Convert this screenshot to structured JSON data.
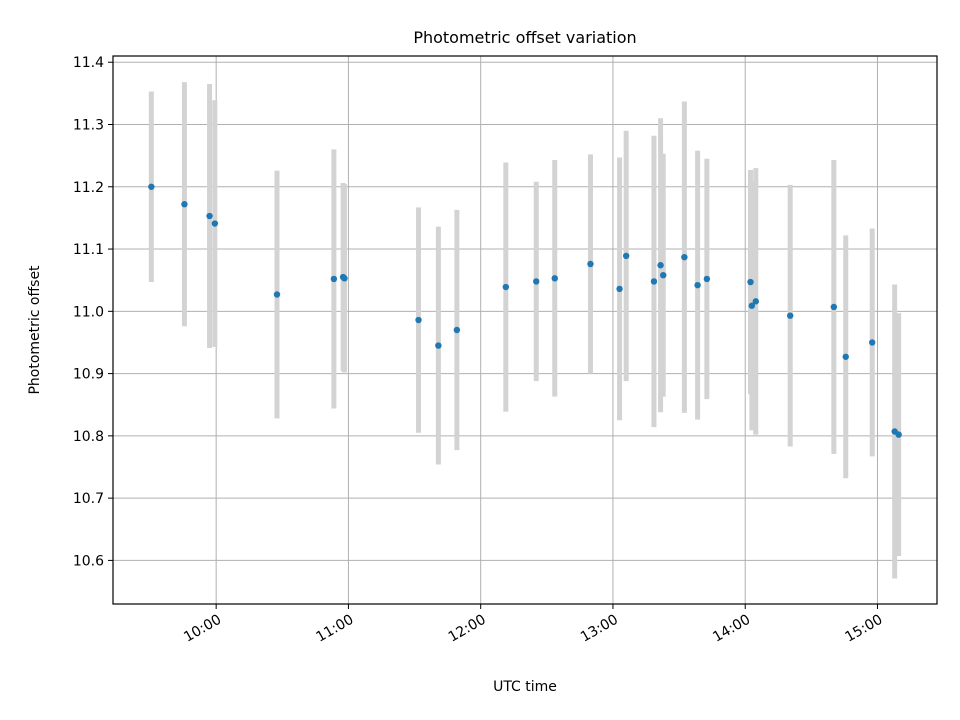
{
  "chart_data": {
    "type": "scatter",
    "title": "Photometric offset variation",
    "xlabel": "UTC time",
    "ylabel": "Photometric offset",
    "x_unit": "hours UTC (decimal)",
    "xlim": [
      9.22,
      15.45
    ],
    "ylim": [
      10.53,
      11.41
    ],
    "x_ticks": [
      {
        "value": 10,
        "label": "10:00"
      },
      {
        "value": 11,
        "label": "11:00"
      },
      {
        "value": 12,
        "label": "12:00"
      },
      {
        "value": 13,
        "label": "13:00"
      },
      {
        "value": 14,
        "label": "14:00"
      },
      {
        "value": 15,
        "label": "15:00"
      }
    ],
    "y_ticks": [
      {
        "value": 10.6,
        "label": "10.6"
      },
      {
        "value": 10.7,
        "label": "10.7"
      },
      {
        "value": 10.8,
        "label": "10.8"
      },
      {
        "value": 10.9,
        "label": "10.9"
      },
      {
        "value": 11.0,
        "label": "11.0"
      },
      {
        "value": 11.1,
        "label": "11.1"
      },
      {
        "value": 11.2,
        "label": "11.2"
      },
      {
        "value": 11.3,
        "label": "11.3"
      },
      {
        "value": 11.4,
        "label": "11.4"
      }
    ],
    "grid": true,
    "point_color": "#1f77b4",
    "errorbar_color": "#d3d3d3",
    "points": [
      {
        "x": 9.51,
        "y": 11.2,
        "err": 0.153
      },
      {
        "x": 9.76,
        "y": 11.172,
        "err": 0.196
      },
      {
        "x": 9.95,
        "y": 11.153,
        "err": 0.212
      },
      {
        "x": 9.99,
        "y": 11.141,
        "err": 0.198
      },
      {
        "x": 10.46,
        "y": 11.027,
        "err": 0.199
      },
      {
        "x": 10.89,
        "y": 11.052,
        "err": 0.208
      },
      {
        "x": 10.96,
        "y": 11.055,
        "err": 0.151
      },
      {
        "x": 10.97,
        "y": 11.053,
        "err": 0.151
      },
      {
        "x": 11.53,
        "y": 10.986,
        "err": 0.181
      },
      {
        "x": 11.68,
        "y": 10.945,
        "err": 0.191
      },
      {
        "x": 11.82,
        "y": 10.97,
        "err": 0.193
      },
      {
        "x": 12.19,
        "y": 11.039,
        "err": 0.2
      },
      {
        "x": 12.42,
        "y": 11.048,
        "err": 0.16
      },
      {
        "x": 12.56,
        "y": 11.053,
        "err": 0.19
      },
      {
        "x": 12.83,
        "y": 11.076,
        "err": 0.176
      },
      {
        "x": 13.05,
        "y": 11.036,
        "err": 0.211
      },
      {
        "x": 13.1,
        "y": 11.089,
        "err": 0.201
      },
      {
        "x": 13.31,
        "y": 11.048,
        "err": 0.234
      },
      {
        "x": 13.36,
        "y": 11.074,
        "err": 0.236
      },
      {
        "x": 13.38,
        "y": 11.058,
        "err": 0.195
      },
      {
        "x": 13.54,
        "y": 11.087,
        "err": 0.25
      },
      {
        "x": 13.64,
        "y": 11.042,
        "err": 0.216
      },
      {
        "x": 13.71,
        "y": 11.052,
        "err": 0.193
      },
      {
        "x": 14.04,
        "y": 11.047,
        "err": 0.18
      },
      {
        "x": 14.05,
        "y": 11.009,
        "err": 0.2
      },
      {
        "x": 14.08,
        "y": 11.016,
        "err": 0.214
      },
      {
        "x": 14.34,
        "y": 10.993,
        "err": 0.21
      },
      {
        "x": 14.67,
        "y": 11.007,
        "err": 0.236
      },
      {
        "x": 14.76,
        "y": 10.927,
        "err": 0.195
      },
      {
        "x": 14.96,
        "y": 10.95,
        "err": 0.183
      },
      {
        "x": 15.13,
        "y": 10.807,
        "err": 0.236
      },
      {
        "x": 15.16,
        "y": 10.802,
        "err": 0.195
      }
    ]
  }
}
